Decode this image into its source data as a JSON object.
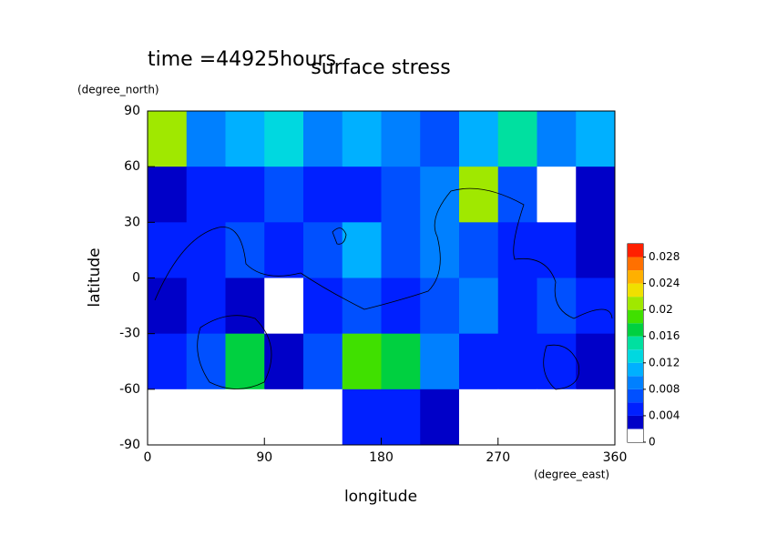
{
  "chart_data": {
    "type": "heatmap",
    "title": "surface stress",
    "subtitle": "time =44925hours",
    "x_label": "longitude",
    "x_unit": "(degree_east)",
    "y_label": "latitude",
    "y_unit": "(degree_north)",
    "xlim": [
      0,
      360
    ],
    "xticks": [
      0,
      90,
      180,
      270,
      360
    ],
    "ylim": [
      -90,
      90
    ],
    "yticks": [
      -90,
      -60,
      -30,
      0,
      30,
      60,
      90
    ],
    "x": [
      15,
      45,
      75,
      105,
      135,
      165,
      195,
      225,
      255,
      285,
      315,
      345
    ],
    "y": [
      75,
      45,
      15,
      -15,
      -45,
      -75
    ],
    "z": [
      [
        0.02,
        0.008,
        0.01,
        0.012,
        0.008,
        0.01,
        0.008,
        0.006,
        0.01,
        0.014,
        0.008,
        0.01
      ],
      [
        0.003,
        0.005,
        0.004,
        0.006,
        0.004,
        0.005,
        0.006,
        0.009,
        0.02,
        0.006,
        0.001,
        0.003
      ],
      [
        0.004,
        0.005,
        0.006,
        0.004,
        0.006,
        0.01,
        0.006,
        0.008,
        0.007,
        0.004,
        0.005,
        0.003
      ],
      [
        0.002,
        0.004,
        0.003,
        0.001,
        0.004,
        0.006,
        0.005,
        0.006,
        0.008,
        0.005,
        0.006,
        0.004
      ],
      [
        0.004,
        0.006,
        0.016,
        0.003,
        0.006,
        0.018,
        0.016,
        0.008,
        0.004,
        0.005,
        0.004,
        0.003
      ],
      [
        0,
        0,
        0,
        0,
        0,
        0.004,
        0.004,
        0.003,
        0,
        0,
        0,
        0
      ]
    ],
    "clim": [
      0,
      0.03
    ],
    "cticks": [
      0,
      0.004,
      0.008,
      0.012,
      0.016,
      0.02,
      0.024,
      0.028
    ],
    "levels": [
      0,
      0.002,
      0.004,
      0.006,
      0.008,
      0.01,
      0.012,
      0.014,
      0.016,
      0.018,
      0.02,
      0.022,
      0.024,
      0.026,
      0.028,
      0.03
    ],
    "colors": [
      "#ffffff",
      "#0000c8",
      "#0020ff",
      "#0050ff",
      "#0080ff",
      "#00b0ff",
      "#00d8e0",
      "#00e0a0",
      "#00d040",
      "#40e000",
      "#a0e800",
      "#f0e000",
      "#ffb000",
      "#ff7000",
      "#ff2000"
    ]
  }
}
